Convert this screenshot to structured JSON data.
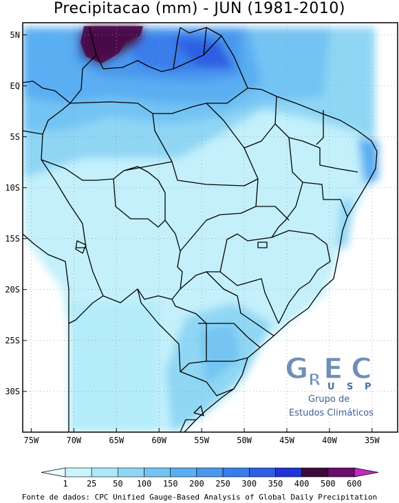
{
  "title": "Precipitacao (mm) - JUN (1981-2010)",
  "source": "Fonte de dados: CPC Unified Gauge-Based Analysis of Global Daily Precipitation",
  "map": {
    "lon_labels": [
      "75W",
      "70W",
      "65W",
      "60W",
      "55W",
      "50W",
      "45W",
      "40W",
      "35W"
    ],
    "lat_labels": [
      "5N",
      "EQ",
      "5S",
      "10S",
      "15S",
      "20S",
      "25S",
      "30S"
    ],
    "lon_values": [
      -75,
      -70,
      -65,
      -60,
      -55,
      -50,
      -45,
      -40,
      -35
    ],
    "lat_values": [
      5,
      0,
      -5,
      -10,
      -15,
      -20,
      -25,
      -30
    ],
    "lon_range": [
      -76,
      -32
    ],
    "lat_range": [
      -34,
      6.2
    ],
    "grid": "dotted"
  },
  "colorbar": {
    "labels": [
      "1",
      "25",
      "50",
      "100",
      "150",
      "200",
      "250",
      "300",
      "350",
      "400",
      "500",
      "600"
    ],
    "colors": [
      "#e9fdff",
      "#c9f4fb",
      "#aee8f8",
      "#8fd6f5",
      "#73c3f3",
      "#5aaef2",
      "#4a97ee",
      "#3a7dea",
      "#2d5fe2",
      "#1f33d6",
      "#3c0b3c",
      "#6b0d6b",
      "#a21aa2",
      "#c02ac0"
    ]
  },
  "logo": {
    "letters": "GREC",
    "sub": "USP",
    "line1": "Grupo de",
    "line2": "Estudos Climáticos",
    "color": "#6f8fb8"
  }
}
